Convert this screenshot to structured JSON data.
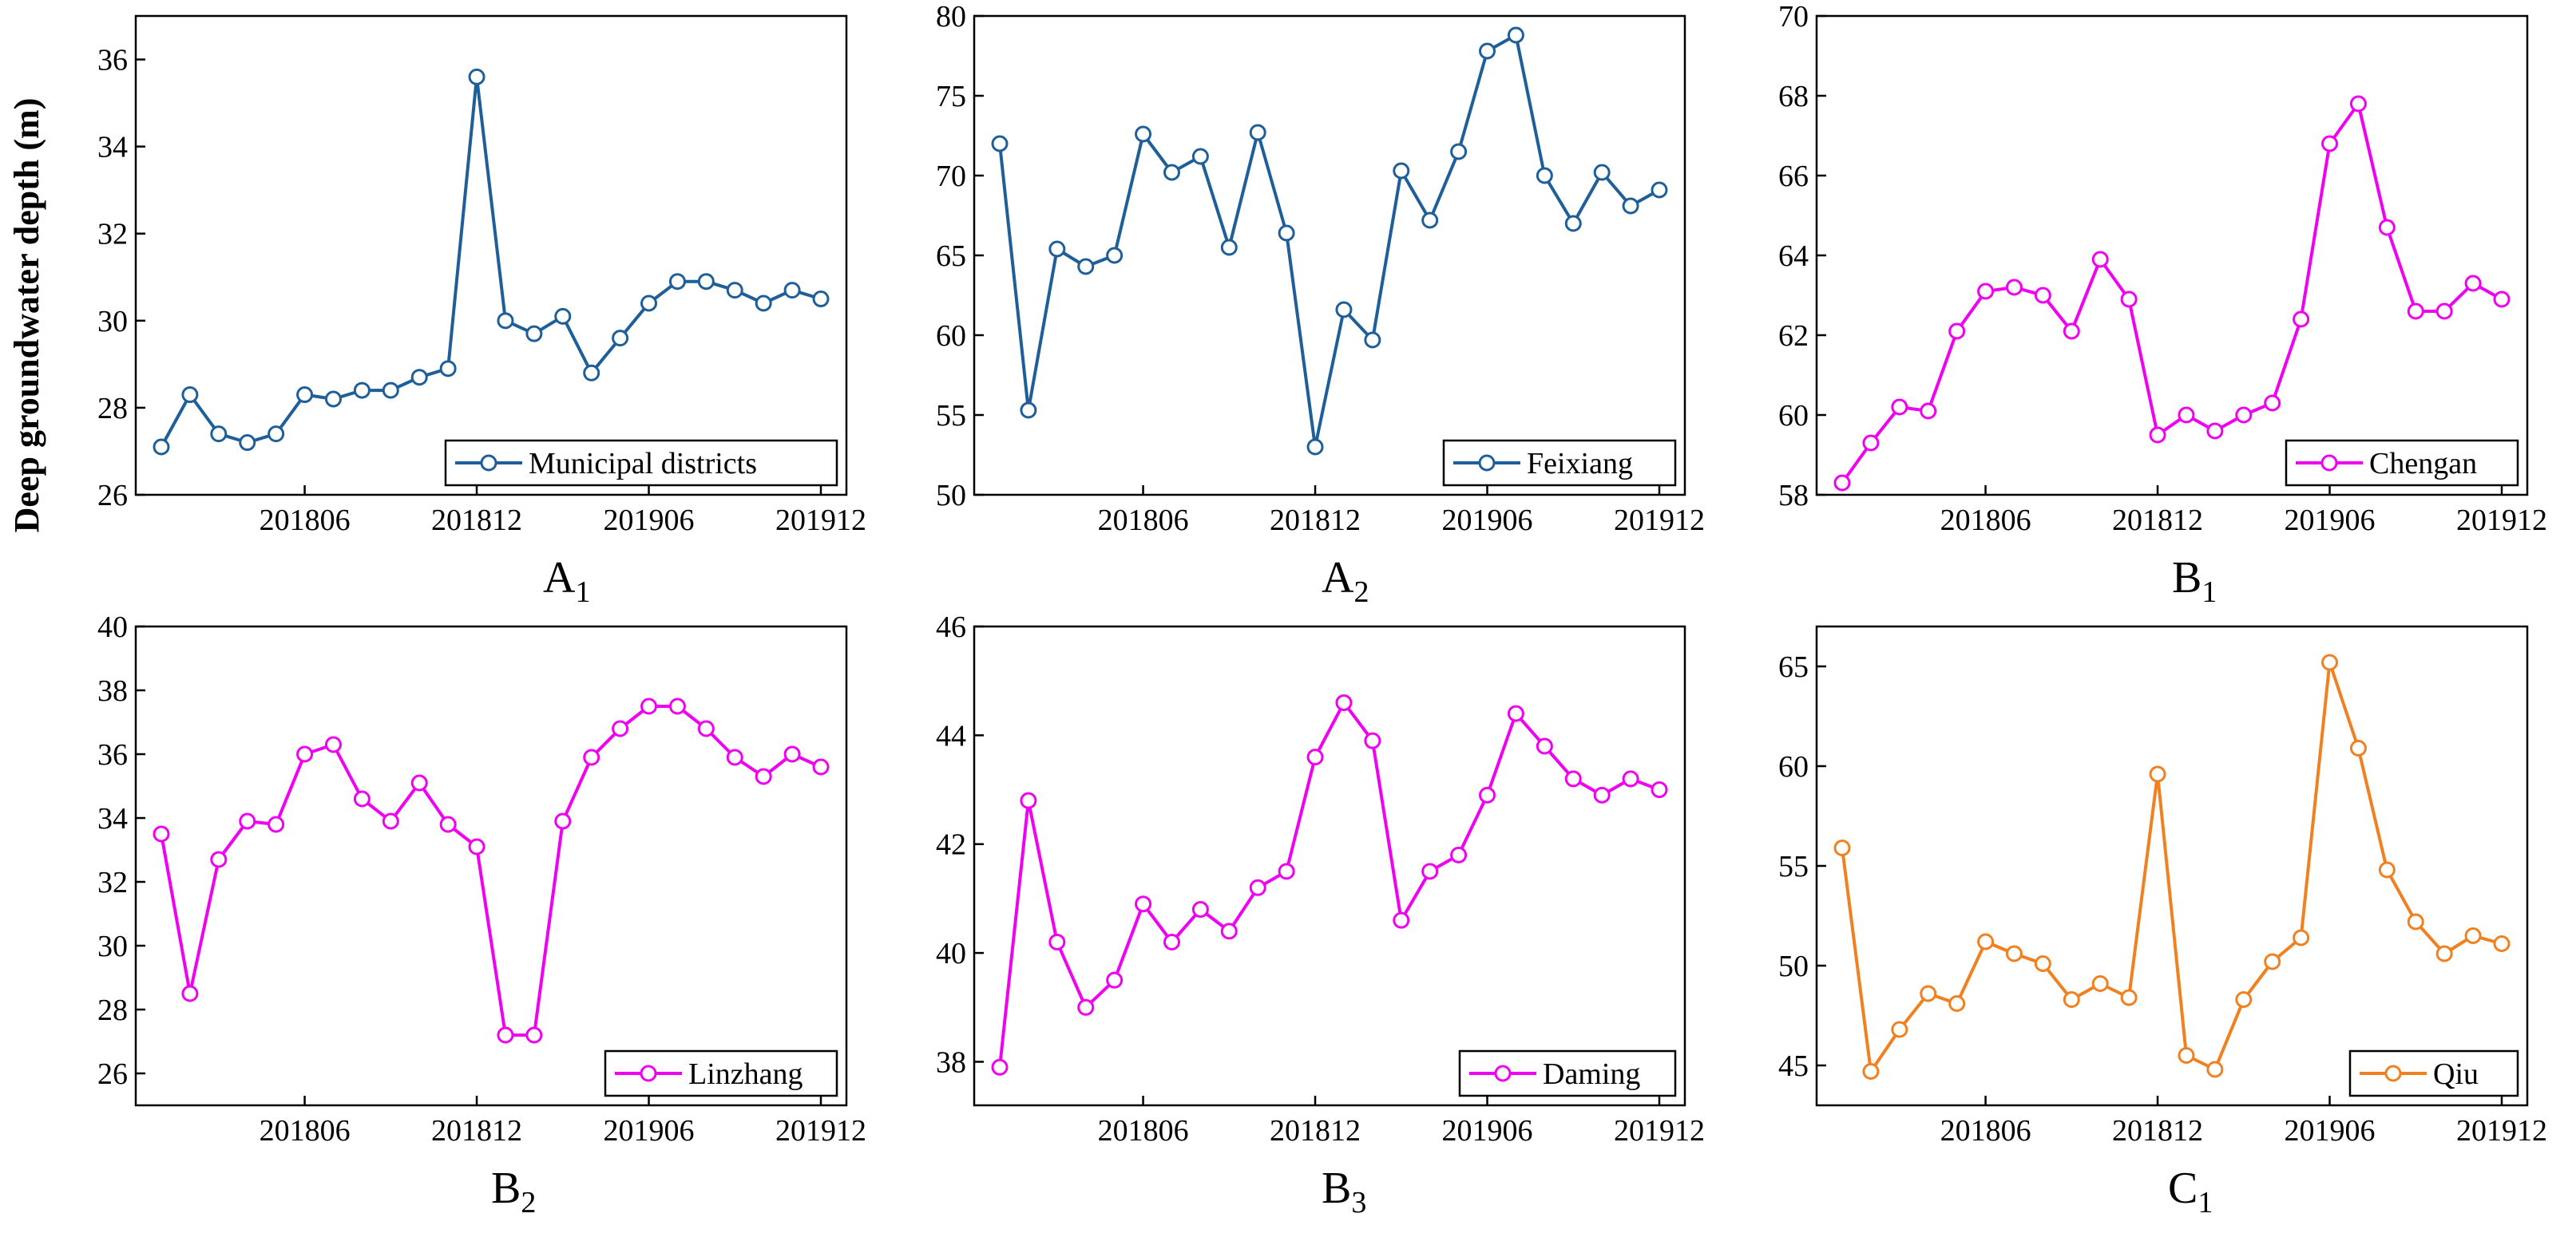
{
  "figure": {
    "ylabel": "Deep groundwater depth (m)"
  },
  "chart_data": [
    {
      "type": "line",
      "panel_label": "A",
      "panel_sub": "1",
      "series_name": "Municipal districts",
      "color": "#1f5f99",
      "legend_position": "bottom-right",
      "ylim": [
        26,
        37
      ],
      "yticks": [
        26,
        28,
        30,
        32,
        34,
        36
      ],
      "xtick_labels": [
        "201806",
        "201812",
        "201906",
        "201912"
      ],
      "xtick_index": [
        5,
        11,
        17,
        23
      ],
      "values": [
        27.1,
        28.3,
        27.4,
        27.2,
        27.4,
        28.3,
        28.2,
        28.4,
        28.4,
        28.7,
        28.9,
        35.6,
        30.0,
        29.7,
        30.1,
        28.8,
        29.6,
        30.4,
        30.9,
        30.9,
        30.7,
        30.4,
        30.7,
        30.5
      ]
    },
    {
      "type": "line",
      "panel_label": "A",
      "panel_sub": "2",
      "series_name": "Feixiang",
      "color": "#1f5f99",
      "legend_position": "bottom-right",
      "ylim": [
        50,
        80
      ],
      "yticks": [
        50,
        55,
        60,
        65,
        70,
        75,
        80
      ],
      "xtick_labels": [
        "201806",
        "201812",
        "201906",
        "201912"
      ],
      "xtick_index": [
        5,
        11,
        17,
        23
      ],
      "values": [
        72.0,
        55.3,
        65.4,
        64.3,
        65.0,
        72.6,
        70.2,
        71.2,
        65.5,
        72.7,
        66.4,
        53.0,
        61.6,
        59.7,
        70.3,
        67.2,
        71.5,
        77.8,
        78.8,
        70.0,
        67.0,
        70.2,
        68.1,
        69.1
      ]
    },
    {
      "type": "line",
      "panel_label": "B",
      "panel_sub": "1",
      "series_name": "Chengan",
      "color": "#f000f0",
      "legend_position": "bottom-right",
      "ylim": [
        58,
        70
      ],
      "yticks": [
        58,
        60,
        62,
        64,
        66,
        68,
        70
      ],
      "xtick_labels": [
        "201806",
        "201812",
        "201906",
        "201912"
      ],
      "xtick_index": [
        5,
        11,
        17,
        23
      ],
      "values": [
        58.3,
        59.3,
        60.2,
        60.1,
        62.1,
        63.1,
        63.2,
        63.0,
        62.1,
        63.9,
        62.9,
        59.5,
        60.0,
        59.6,
        60.0,
        60.3,
        62.4,
        66.8,
        67.8,
        64.7,
        62.6,
        62.6,
        63.3,
        62.9
      ]
    },
    {
      "type": "line",
      "panel_label": "B",
      "panel_sub": "2",
      "series_name": "Linzhang",
      "color": "#f000f0",
      "legend_position": "bottom-right",
      "ylim": [
        25,
        40
      ],
      "yticks": [
        26,
        28,
        30,
        32,
        34,
        36,
        38,
        40
      ],
      "xtick_labels": [
        "201806",
        "201812",
        "201906",
        "201912"
      ],
      "xtick_index": [
        5,
        11,
        17,
        23
      ],
      "values": [
        33.5,
        28.5,
        32.7,
        33.9,
        33.8,
        36.0,
        36.3,
        34.6,
        33.9,
        35.1,
        33.8,
        33.1,
        27.2,
        27.2,
        33.9,
        35.9,
        36.8,
        37.5,
        37.5,
        36.8,
        35.9,
        35.3,
        36.0,
        35.6
      ]
    },
    {
      "type": "line",
      "panel_label": "B",
      "panel_sub": "3",
      "series_name": "Daming",
      "color": "#f000f0",
      "legend_position": "bottom-right",
      "ylim": [
        37.2,
        46
      ],
      "yticks": [
        38,
        40,
        42,
        44,
        46
      ],
      "xtick_labels": [
        "201806",
        "201812",
        "201906",
        "201912"
      ],
      "xtick_index": [
        5,
        11,
        17,
        23
      ],
      "values": [
        37.9,
        42.8,
        40.2,
        39.0,
        39.5,
        40.9,
        40.2,
        40.8,
        40.4,
        41.2,
        41.5,
        43.6,
        44.6,
        43.9,
        40.6,
        41.5,
        41.8,
        42.9,
        44.4,
        43.8,
        43.2,
        42.9,
        43.2,
        43.0
      ]
    },
    {
      "type": "line",
      "panel_label": "C",
      "panel_sub": "1",
      "series_name": "Qiu",
      "color": "#f08020",
      "legend_position": "bottom-right",
      "ylim": [
        43,
        67
      ],
      "yticks": [
        45,
        50,
        55,
        60,
        65
      ],
      "xtick_labels": [
        "201806",
        "201812",
        "201906",
        "201912"
      ],
      "xtick_index": [
        5,
        11,
        17,
        23
      ],
      "values": [
        55.9,
        44.7,
        46.8,
        48.6,
        48.1,
        51.2,
        50.6,
        50.1,
        48.3,
        49.1,
        48.4,
        59.6,
        45.5,
        44.8,
        48.3,
        50.2,
        51.4,
        65.2,
        60.9,
        54.8,
        52.2,
        50.6,
        51.5,
        51.1
      ]
    }
  ]
}
